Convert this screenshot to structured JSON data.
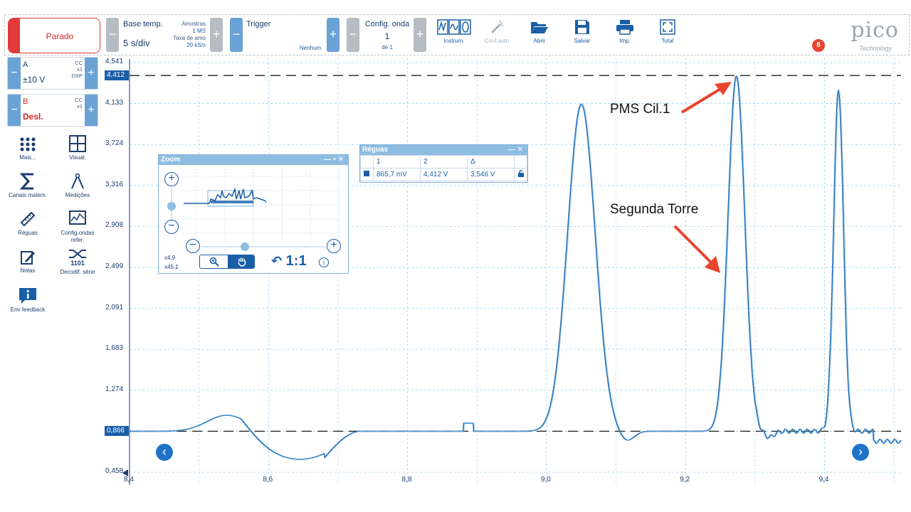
{
  "toolbar": {
    "run_state": "Parado",
    "timebase": {
      "label": "Base temp.",
      "value": "5 s/div"
    },
    "samples": {
      "label": "Amostras",
      "value": "1 MS",
      "rate_label": "Taxa de amo",
      "rate_value": "20 kS/s"
    },
    "trigger": {
      "label": "Trigger",
      "mode": "Nenhum"
    },
    "waveform": {
      "label": "Config. onda",
      "current": "1",
      "of": "de 1"
    },
    "tools": [
      {
        "id": "instrument",
        "label": "Instrum.",
        "icon": "instrument-icon",
        "enabled": true
      },
      {
        "id": "autoset",
        "label": "Conf.auto",
        "icon": "magic-wand-icon",
        "enabled": false
      },
      {
        "id": "open",
        "label": "Abrir",
        "icon": "folder-open-icon",
        "enabled": true
      },
      {
        "id": "save",
        "label": "Salvar",
        "icon": "save-icon",
        "enabled": true
      },
      {
        "id": "print",
        "label": "Imp.",
        "icon": "printer-icon",
        "enabled": true
      },
      {
        "id": "fullscreen",
        "label": "Total",
        "icon": "fullscreen-icon",
        "enabled": true
      }
    ],
    "notifications": "8",
    "logo_text": "pico",
    "logo_sub": "Technology"
  },
  "channels": [
    {
      "name": "A",
      "range": "±10 V",
      "coupling": "CC",
      "probe": "x1",
      "extra": "DSP",
      "color": "#1a3c6e"
    },
    {
      "name": "B",
      "range": "Desl.",
      "coupling": "CC",
      "probe": "x1",
      "extra": "",
      "color": "#d62626"
    }
  ],
  "sidebar": [
    {
      "label": "Mais...",
      "icon": "more-dots-icon"
    },
    {
      "label": "Visual.",
      "icon": "view-grid-icon"
    },
    {
      "label": "Canais matem.",
      "icon": "sigma-icon"
    },
    {
      "label": "Medições",
      "icon": "compass-icon"
    },
    {
      "label": "Réguas",
      "icon": "ruler-icon"
    },
    {
      "label": "Config.ondas refer.",
      "icon": "reference-waveform-icon"
    },
    {
      "label": "Notas",
      "icon": "notes-icon"
    },
    {
      "label": "Decodif. série",
      "icon": "serial-decode-icon"
    },
    {
      "label": "Env feedback",
      "icon": "feedback-icon"
    }
  ],
  "scope": {
    "y_ticks": [
      "4,541",
      "4,133",
      "3,724",
      "3,316",
      "2,908",
      "2,499",
      "2,091",
      "1,683",
      "1,274",
      "0,866",
      "0,458"
    ],
    "x_ticks": [
      "8,4",
      "8,6",
      "8,8",
      "9,0",
      "9,2",
      "9,4"
    ],
    "x_range": [
      8.4,
      9.51
    ],
    "y_range": [
      0.458,
      4.541
    ],
    "ruler_high": "4,412",
    "ruler_low": "0,866",
    "trace_color": "#1f6fb8",
    "grid_color": "#9fd0ee"
  },
  "zoom_panel": {
    "title": "Zoom",
    "zoom_x": "x4,9",
    "zoom_y": "x45,1",
    "reset_label": "1:1"
  },
  "rulers_panel": {
    "title": "Réguas",
    "col1": "1",
    "col2": "2",
    "col3": "Δ",
    "val1": "865,7 mV",
    "val2": "4,412 V",
    "delta": "3,546 V"
  },
  "annotations": {
    "tdc": "PMS Cil.1",
    "second": "Segunda Torre"
  }
}
